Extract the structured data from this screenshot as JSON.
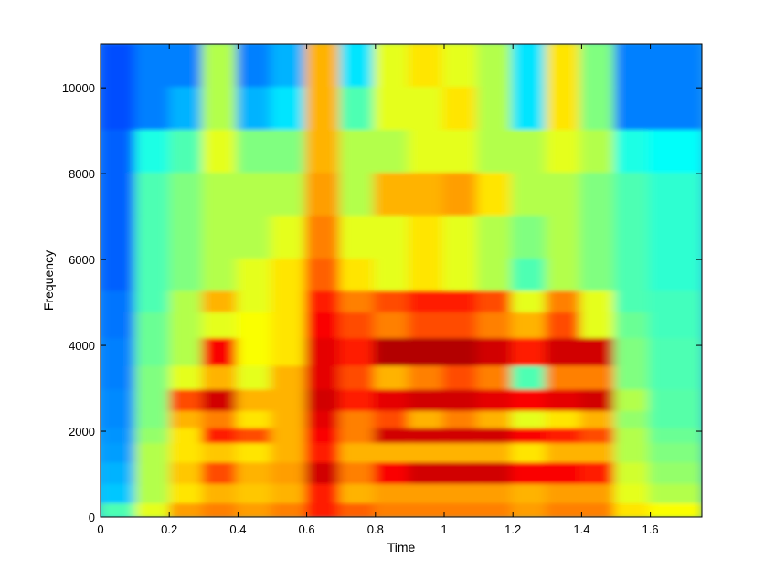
{
  "chart_data": {
    "type": "heatmap",
    "title": "",
    "xlabel": "Time",
    "ylabel": "Frequency",
    "xlim": [
      0,
      1.75
    ],
    "ylim": [
      0,
      11025
    ],
    "xticks": [
      0,
      0.2,
      0.4,
      0.6,
      0.8,
      1,
      1.2,
      1.4,
      1.6
    ],
    "xtick_labels": [
      "0",
      "0.2",
      "0.4",
      "0.6",
      "0.8",
      "1",
      "1.2",
      "1.4",
      "1.6"
    ],
    "yticks": [
      0,
      2000,
      4000,
      6000,
      8000,
      10000
    ],
    "ytick_labels": [
      "0",
      "2000",
      "4000",
      "6000",
      "8000",
      "10000"
    ],
    "colormap": "jet",
    "grid": false,
    "legend": "none",
    "intensity_grid": {
      "description": "relative spectral energy (0 = low/blue, 1 = high/red); rows are frequency bands from high to low",
      "time_bins": [
        0.05,
        0.16,
        0.25,
        0.35,
        0.45,
        0.55,
        0.65,
        0.75,
        0.85,
        0.95,
        1.05,
        1.15,
        1.25,
        1.35,
        1.45,
        1.55,
        1.65
      ],
      "freq_bins": [
        10500,
        9500,
        8500,
        7500,
        6500,
        5500,
        5000,
        4500,
        3800,
        3200,
        2700,
        2200,
        1900,
        1500,
        1000,
        500,
        100
      ],
      "values": [
        [
          0.2,
          0.25,
          0.25,
          0.55,
          0.25,
          0.3,
          0.7,
          0.35,
          0.6,
          0.65,
          0.6,
          0.55,
          0.35,
          0.65,
          0.5,
          0.25,
          0.25
        ],
        [
          0.2,
          0.25,
          0.3,
          0.55,
          0.3,
          0.35,
          0.7,
          0.45,
          0.6,
          0.6,
          0.65,
          0.55,
          0.35,
          0.65,
          0.5,
          0.25,
          0.25
        ],
        [
          0.22,
          0.4,
          0.45,
          0.6,
          0.5,
          0.5,
          0.7,
          0.55,
          0.55,
          0.6,
          0.6,
          0.55,
          0.55,
          0.6,
          0.55,
          0.4,
          0.38
        ],
        [
          0.22,
          0.45,
          0.5,
          0.55,
          0.55,
          0.55,
          0.72,
          0.55,
          0.7,
          0.7,
          0.72,
          0.65,
          0.55,
          0.55,
          0.5,
          0.45,
          0.42
        ],
        [
          0.22,
          0.45,
          0.5,
          0.55,
          0.55,
          0.6,
          0.75,
          0.6,
          0.6,
          0.65,
          0.6,
          0.55,
          0.5,
          0.55,
          0.5,
          0.45,
          0.42
        ],
        [
          0.22,
          0.45,
          0.5,
          0.55,
          0.6,
          0.65,
          0.78,
          0.65,
          0.6,
          0.65,
          0.6,
          0.55,
          0.45,
          0.55,
          0.5,
          0.45,
          0.42
        ],
        [
          0.24,
          0.45,
          0.55,
          0.7,
          0.6,
          0.65,
          0.85,
          0.75,
          0.8,
          0.85,
          0.85,
          0.8,
          0.6,
          0.75,
          0.6,
          0.45,
          0.44
        ],
        [
          0.24,
          0.48,
          0.55,
          0.6,
          0.62,
          0.65,
          0.88,
          0.8,
          0.75,
          0.8,
          0.8,
          0.75,
          0.7,
          0.8,
          0.6,
          0.48,
          0.44
        ],
        [
          0.25,
          0.48,
          0.55,
          0.88,
          0.62,
          0.65,
          0.9,
          0.85,
          0.95,
          0.95,
          0.95,
          0.92,
          0.85,
          0.92,
          0.92,
          0.5,
          0.45
        ],
        [
          0.25,
          0.5,
          0.6,
          0.7,
          0.6,
          0.7,
          0.9,
          0.8,
          0.7,
          0.75,
          0.8,
          0.75,
          0.45,
          0.75,
          0.75,
          0.5,
          0.45
        ],
        [
          0.26,
          0.5,
          0.8,
          0.92,
          0.7,
          0.7,
          0.92,
          0.85,
          0.9,
          0.92,
          0.92,
          0.9,
          0.88,
          0.9,
          0.92,
          0.55,
          0.46
        ],
        [
          0.26,
          0.5,
          0.7,
          0.75,
          0.65,
          0.7,
          0.9,
          0.75,
          0.8,
          0.7,
          0.75,
          0.7,
          0.6,
          0.65,
          0.7,
          0.52,
          0.46
        ],
        [
          0.27,
          0.52,
          0.65,
          0.85,
          0.8,
          0.7,
          0.88,
          0.75,
          0.92,
          0.92,
          0.92,
          0.92,
          0.88,
          0.85,
          0.8,
          0.55,
          0.48
        ],
        [
          0.28,
          0.55,
          0.65,
          0.68,
          0.65,
          0.7,
          0.85,
          0.7,
          0.7,
          0.7,
          0.7,
          0.7,
          0.65,
          0.7,
          0.7,
          0.55,
          0.5
        ],
        [
          0.3,
          0.55,
          0.68,
          0.8,
          0.7,
          0.72,
          0.92,
          0.75,
          0.88,
          0.92,
          0.92,
          0.92,
          0.88,
          0.88,
          0.85,
          0.58,
          0.52
        ],
        [
          0.32,
          0.55,
          0.65,
          0.7,
          0.68,
          0.7,
          0.85,
          0.7,
          0.72,
          0.72,
          0.72,
          0.72,
          0.7,
          0.72,
          0.72,
          0.6,
          0.55
        ],
        [
          0.45,
          0.6,
          0.72,
          0.75,
          0.72,
          0.75,
          0.85,
          0.78,
          0.75,
          0.75,
          0.75,
          0.75,
          0.72,
          0.75,
          0.75,
          0.65,
          0.62
        ]
      ]
    }
  }
}
